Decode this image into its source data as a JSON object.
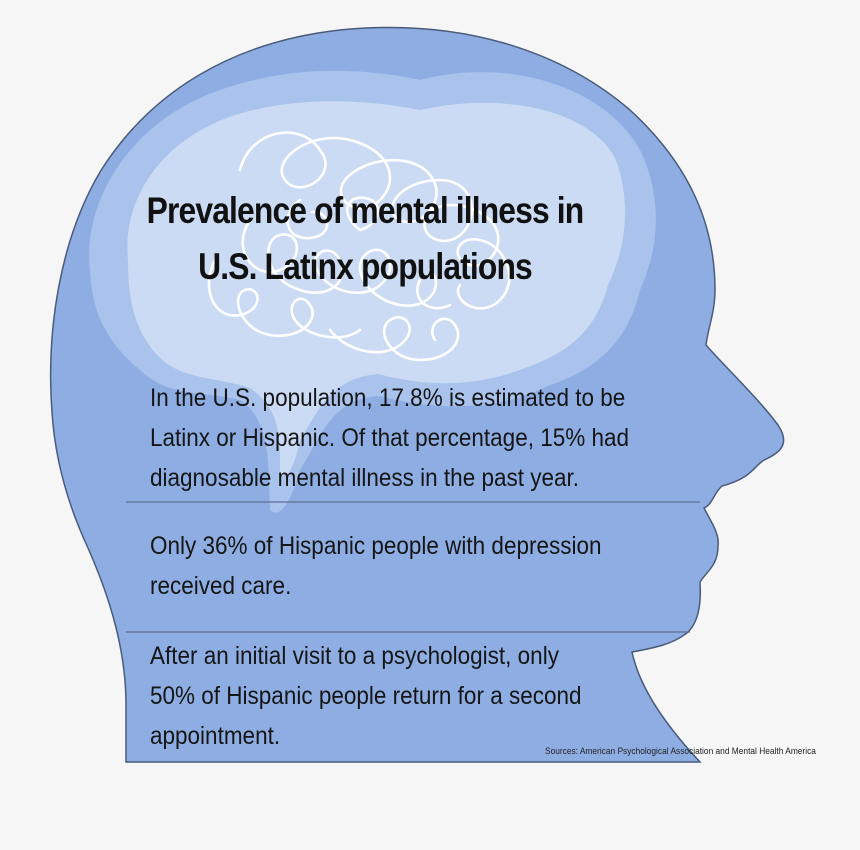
{
  "title": {
    "line1": "Prevalence of mental illness in",
    "line2": "U.S. Latinx populations"
  },
  "facts": [
    {
      "line1": "In the U.S. population, 17.8% is estimated to be",
      "line2": "Latinx or Hispanic. Of that percentage, 15% had",
      "line3": "diagnosable mental illness in the past year."
    },
    {
      "line1": "Only 36% of Hispanic people with depression",
      "line2": "received care."
    },
    {
      "line1": "After an initial visit to a psychologist, only",
      "line2": "50% of Hispanic people return for a second",
      "line3": "appointment."
    }
  ],
  "sources": "Sources: American Psychological Association and Mental Health America",
  "colors": {
    "background": "#f6f6f6",
    "head": "#8eaee3",
    "brain": "#a9c3ec",
    "brain_inner": "#ccdbf4",
    "divider": "#5d6f8e",
    "outline": "#2b3a55",
    "text": "#151515"
  },
  "icons": [
    "head-silhouette-icon",
    "brain-icon"
  ]
}
